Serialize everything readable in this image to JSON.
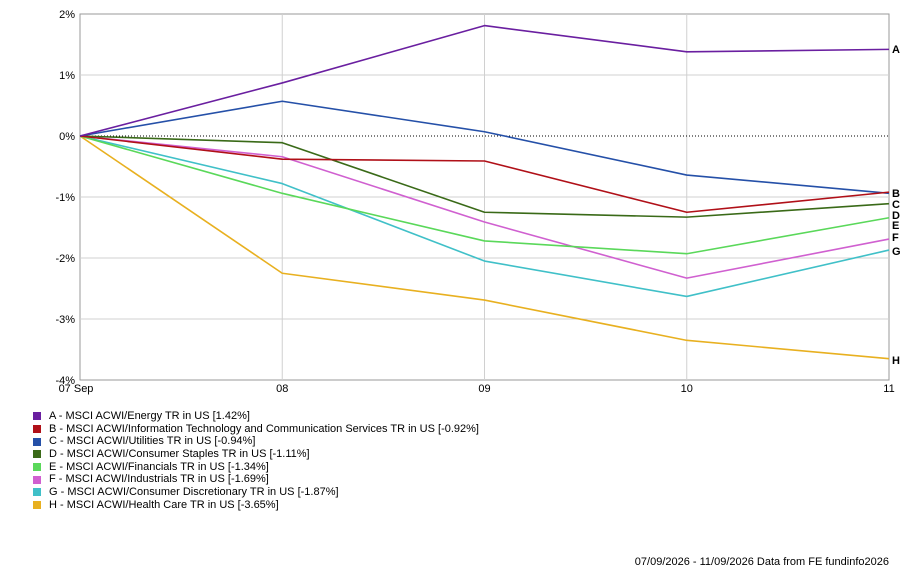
{
  "chart_data": {
    "type": "line",
    "x": [
      "07 Sep",
      "08",
      "09",
      "10",
      "11"
    ],
    "yticks": [
      "2%",
      "1%",
      "0%",
      "-1%",
      "-2%",
      "-3%",
      "-4%"
    ],
    "ylim": [
      -4,
      2
    ],
    "grid": true,
    "series": [
      {
        "letter": "A",
        "name": "A - MSCI ACWI/Energy TR in US [1.42%]",
        "color": "#6a1fa0",
        "values": [
          0,
          0.87,
          1.81,
          1.38,
          1.42
        ]
      },
      {
        "letter": "B",
        "name": "B - MSCI ACWI/Information Technology and Communication Services TR in US [-0.92%]",
        "color": "#b01018",
        "values": [
          0,
          -0.38,
          -0.41,
          -1.25,
          -0.92
        ]
      },
      {
        "letter": "C",
        "name": "C - MSCI ACWI/Utilities TR in US [-0.94%]",
        "color": "#2550a8",
        "values": [
          0,
          0.57,
          0.07,
          -0.64,
          -0.94
        ]
      },
      {
        "letter": "D",
        "name": "D - MSCI ACWI/Consumer Staples TR in US [-1.11%]",
        "color": "#3a6a18",
        "values": [
          0,
          -0.11,
          -1.25,
          -1.33,
          -1.11
        ]
      },
      {
        "letter": "E",
        "name": "E - MSCI ACWI/Financials TR in US [-1.34%]",
        "color": "#5ad85a",
        "values": [
          0,
          -0.94,
          -1.72,
          -1.93,
          -1.34
        ]
      },
      {
        "letter": "F",
        "name": "F - MSCI ACWI/Industrials TR in US [-1.69%]",
        "color": "#d060d0",
        "values": [
          0,
          -0.34,
          -1.41,
          -2.33,
          -1.69
        ]
      },
      {
        "letter": "G",
        "name": "G - MSCI ACWI/Consumer Discretionary TR in US [-1.87%]",
        "color": "#40c0c8",
        "values": [
          0,
          -0.78,
          -2.05,
          -2.63,
          -1.87
        ]
      },
      {
        "letter": "H",
        "name": "H - MSCI ACWI/Health Care TR in US [-3.65%]",
        "color": "#e8b020",
        "values": [
          0,
          -2.25,
          -2.69,
          -3.35,
          -3.65
        ]
      }
    ]
  },
  "footer": "07/09/2026 - 11/09/2026 Data from FE fundinfo2026"
}
